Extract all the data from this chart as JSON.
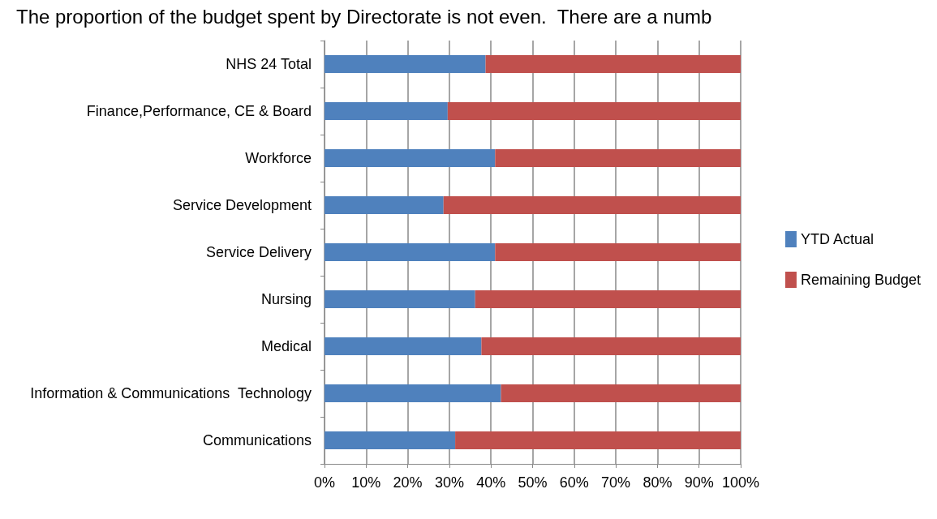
{
  "chart_data": {
    "type": "bar",
    "orientation": "horizontal",
    "stacked": true,
    "annotations": [
      "The proportion of the budget spent by Directorate is not even.  There are a numb"
    ],
    "categories": [
      "NHS 24 Total",
      "Finance,Performance, CE & Board",
      "Workforce",
      "Service Development",
      "Service Delivery",
      "Nursing",
      "Medical",
      "Information & Communications  Technology",
      "Communications"
    ],
    "series": [
      {
        "name": "YTD Actual",
        "color": "#4f81bd",
        "values": [
          38.7,
          29.6,
          41.0,
          28.6,
          41.0,
          36.2,
          37.7,
          42.4,
          31.4
        ]
      },
      {
        "name": "Remaining Budget",
        "color": "#c0504d",
        "values": [
          61.3,
          70.4,
          59.0,
          71.4,
          59.0,
          63.8,
          62.3,
          57.6,
          68.6
        ]
      }
    ],
    "xlim": [
      0,
      100
    ],
    "xticks": [
      {
        "value": 0,
        "label": "0%"
      },
      {
        "value": 10,
        "label": "10%"
      },
      {
        "value": 20,
        "label": "20%"
      },
      {
        "value": 30,
        "label": "30%"
      },
      {
        "value": 40,
        "label": "40%"
      },
      {
        "value": 50,
        "label": "50%"
      },
      {
        "value": 60,
        "label": "60%"
      },
      {
        "value": 70,
        "label": "70%"
      },
      {
        "value": 80,
        "label": "80%"
      },
      {
        "value": 90,
        "label": "90%"
      },
      {
        "value": 100,
        "label": "100%"
      }
    ],
    "grid": "x",
    "legend": "right"
  }
}
